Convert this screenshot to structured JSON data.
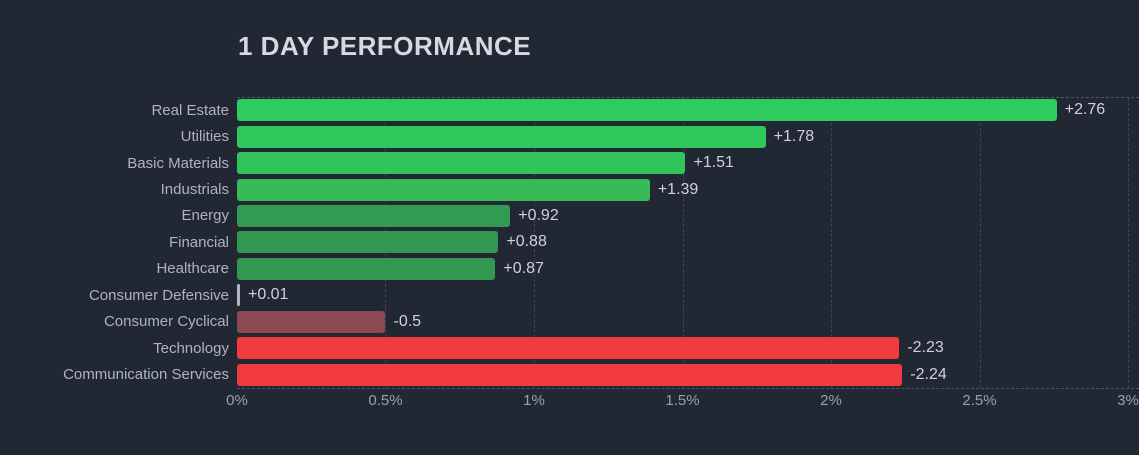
{
  "title": "1 DAY PERFORMANCE",
  "colors": {
    "background": "#222734",
    "title_text": "#d6d9e1",
    "category_text": "#aeb3bf",
    "value_text": "#ced2da",
    "tick_text": "#9aa0ae",
    "grid": "rgba(170,178,195,0.25)",
    "positive_bright": "#2fca5c",
    "positive_dark": "#329951",
    "neutral": "#b2b5be",
    "negative_muted": "#8b4a52",
    "negative_bright": "#f23b3e"
  },
  "chart_data": {
    "type": "bar",
    "orientation": "horizontal",
    "title": "1 DAY PERFORMANCE",
    "categories": [
      "Real Estate",
      "Utilities",
      "Basic Materials",
      "Industrials",
      "Energy",
      "Financial",
      "Healthcare",
      "Consumer Defensive",
      "Consumer Cyclical",
      "Technology",
      "Communication Services"
    ],
    "values": [
      2.76,
      1.78,
      1.51,
      1.39,
      0.92,
      0.88,
      0.87,
      0.01,
      -0.5,
      -2.23,
      -2.24
    ],
    "value_labels": [
      "+2.76",
      "+1.78",
      "+1.51",
      "+1.39",
      "+0.92",
      "+0.88",
      "+0.87",
      "+0.01",
      "-0.5",
      "-2.23",
      "-2.24"
    ],
    "bar_colors": [
      "#2ecc5e",
      "#2fc95b",
      "#32c45a",
      "#38bb57",
      "#339a52",
      "#329851",
      "#329750",
      "#b2b5be",
      "#8b4a52",
      "#f23b3e",
      "#f23b3e"
    ],
    "xlabel": "",
    "ylabel": "",
    "x_ticks": [
      "0%",
      "0.5%",
      "1%",
      "1.5%",
      "2%",
      "2.5%",
      "3%"
    ],
    "xlim": [
      0,
      3
    ],
    "grid": "dashed-vertical",
    "legend": "none"
  }
}
